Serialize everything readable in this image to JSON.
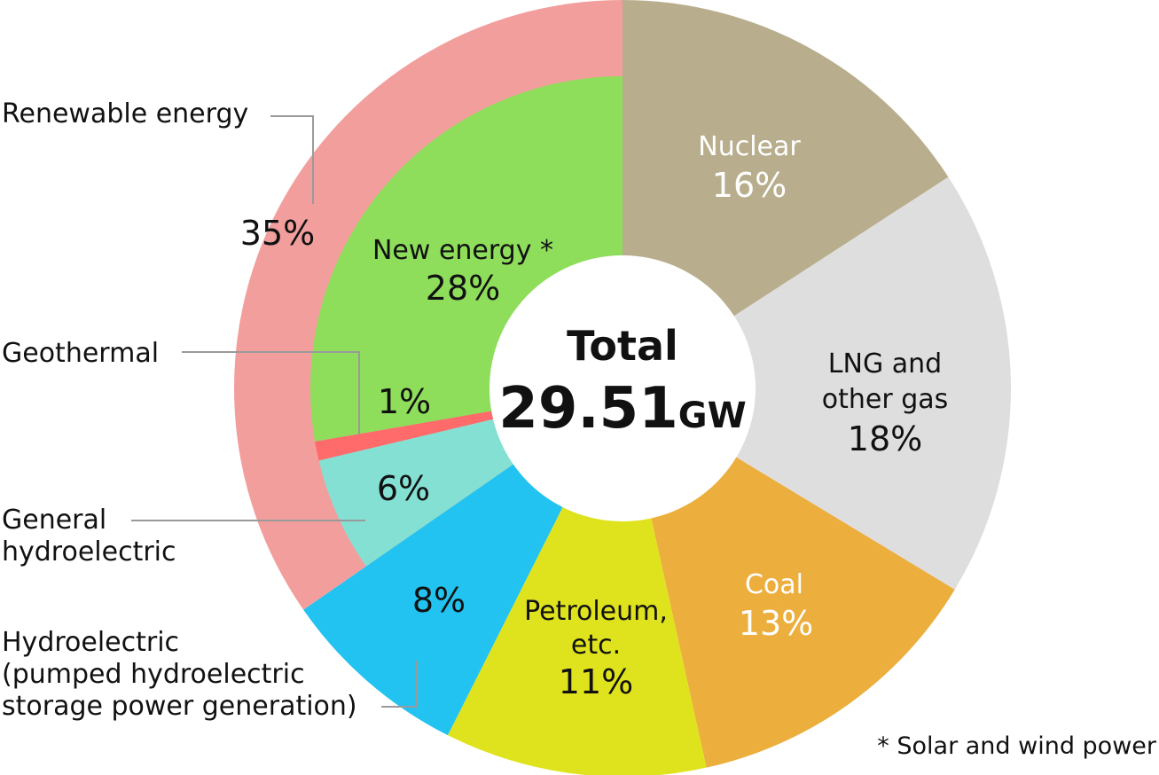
{
  "chart_data": {
    "type": "pie",
    "center": {
      "title": "Total",
      "value": "29.51",
      "unit": "GW"
    },
    "outer_ring": [
      {
        "name": "Nuclear",
        "pct_label": "16%",
        "value": 16,
        "color": "#b8ae8e"
      },
      {
        "name": "LNG and other gas",
        "pct_label": "18%",
        "value": 18,
        "color": "#dedede"
      },
      {
        "name": "Coal",
        "pct_label": "13%",
        "value": 13,
        "color": "#ecae3c"
      },
      {
        "name": "Petroleum, etc.",
        "pct_label": "11%",
        "value": 11,
        "color": "#dfe31d"
      },
      {
        "name": "Hydroelectric (pumped hydroelectric storage power generation)",
        "pct_label": "8%",
        "value": 8,
        "color": "#22c3f0"
      },
      {
        "name": "Renewable energy",
        "pct_label": "35%",
        "value": 35,
        "color": "#f29e9c"
      }
    ],
    "renewable_breakdown": [
      {
        "name": "General hydroelectric",
        "pct_label": "6%",
        "value": 6,
        "color": "#84e0d2"
      },
      {
        "name": "Geothermal",
        "pct_label": "1%",
        "value": 1,
        "color": "#ff6b6b"
      },
      {
        "name": "New energy *",
        "pct_label": "28%",
        "value": 28,
        "color": "#8ede5c"
      }
    ],
    "labels": {
      "nuclear": "Nuclear",
      "lng_line1": "LNG and",
      "lng_line2": "other gas",
      "coal": "Coal",
      "petroleum_line1": "Petroleum,",
      "petroleum_line2": "etc.",
      "new_energy": "New energy *",
      "renewable": "Renewable energy",
      "geothermal": "Geothermal",
      "general_hydro_line1": "General",
      "general_hydro_line2": "hydroelectric",
      "pumped_line1": "Hydroelectric",
      "pumped_line2": "(pumped hydroelectric",
      "pumped_line3": "storage power generation)"
    },
    "footnote": "* Solar and wind power"
  }
}
